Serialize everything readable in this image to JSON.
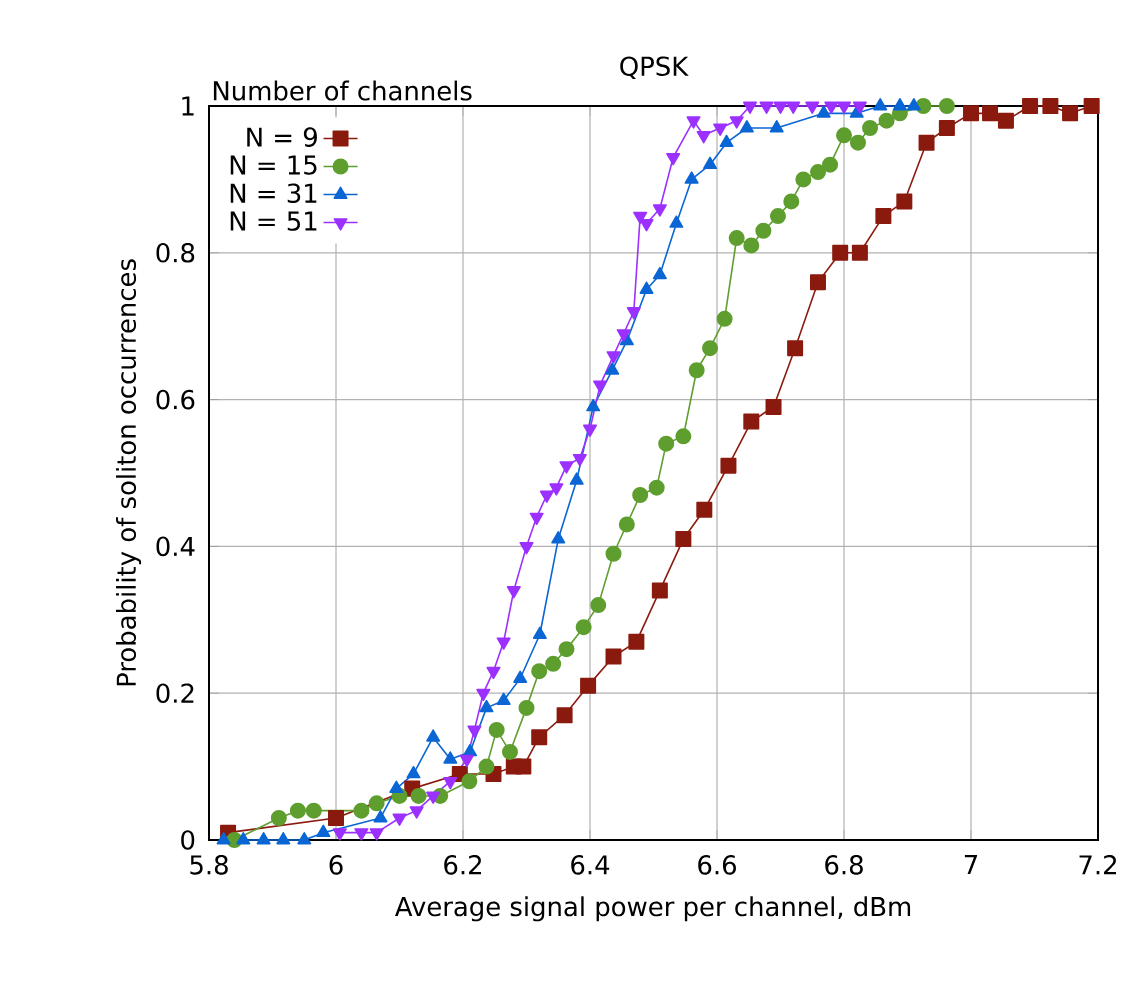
{
  "chart_data": {
    "type": "line",
    "title": "QPSK",
    "xlabel": "Average signal power per channel, dBm",
    "ylabel": "Probability of soliton occurrences",
    "legend_title": "Number of channels",
    "legend": "top left",
    "grid": true,
    "xlim": [
      5.8,
      7.2
    ],
    "xticks": [
      5.8,
      6,
      6.2,
      6.4,
      6.6,
      6.8,
      7,
      7.2
    ],
    "ylim": [
      0,
      1
    ],
    "yticks": [
      0,
      0.2,
      0.4,
      0.6,
      0.8,
      1
    ],
    "series": [
      {
        "name": "N = 9",
        "color": "#8b1a0e",
        "marker": "square",
        "x": [
          5.83,
          6.0,
          6.09,
          6.12,
          6.195,
          6.248,
          6.28,
          6.295,
          6.32,
          6.36,
          6.397,
          6.437,
          6.473,
          6.51,
          6.547,
          6.58,
          6.618,
          6.654,
          6.689,
          6.723,
          6.759,
          6.794,
          6.825,
          6.862,
          6.895,
          6.93,
          6.962,
          7.0,
          7.03,
          7.055,
          7.093,
          7.125,
          7.156,
          7.19
        ],
        "values": [
          0.01,
          0.03,
          null,
          0.07,
          0.09,
          0.09,
          0.1,
          0.1,
          0.14,
          0.17,
          0.21,
          0.25,
          0.27,
          0.34,
          0.41,
          0.45,
          0.51,
          0.57,
          0.59,
          0.67,
          0.76,
          0.8,
          0.8,
          0.85,
          0.87,
          0.95,
          0.97,
          0.99,
          0.99,
          0.98,
          1.0,
          1.0,
          0.99,
          1.0
        ]
      },
      {
        "name": "N = 15",
        "color": "#5e9e2e",
        "marker": "circle",
        "x": [
          5.84,
          5.91,
          5.94,
          5.965,
          6.04,
          6.064,
          6.1,
          6.13,
          6.164,
          6.21,
          6.237,
          6.253,
          6.274,
          6.3,
          6.32,
          6.342,
          6.363,
          6.39,
          6.413,
          6.437,
          6.458,
          6.479,
          6.505,
          6.52,
          6.547,
          6.568,
          6.589,
          6.612,
          6.631,
          6.654,
          6.673,
          6.696,
          6.717,
          6.736,
          6.759,
          6.778,
          6.8,
          6.822,
          6.841,
          6.867,
          6.888,
          6.925,
          6.962
        ],
        "values": [
          0.0,
          0.03,
          0.04,
          0.04,
          0.04,
          0.05,
          0.06,
          0.06,
          0.06,
          0.08,
          0.1,
          0.15,
          0.12,
          0.18,
          0.23,
          0.24,
          0.26,
          0.29,
          0.32,
          0.39,
          0.43,
          0.47,
          0.48,
          0.54,
          0.55,
          0.64,
          0.67,
          0.71,
          0.82,
          0.81,
          0.83,
          0.85,
          0.87,
          0.9,
          0.91,
          0.92,
          0.96,
          0.95,
          0.97,
          0.98,
          0.99,
          1.0,
          1.0
        ]
      },
      {
        "name": "N = 31",
        "color": "#0a66d4",
        "marker": "triangle",
        "x": [
          5.823,
          5.854,
          5.886,
          5.917,
          5.95,
          5.98,
          6.07,
          6.095,
          6.122,
          6.153,
          6.18,
          6.211,
          6.237,
          6.264,
          6.29,
          6.321,
          6.35,
          6.379,
          6.405,
          6.435,
          6.458,
          6.489,
          6.51,
          6.536,
          6.56,
          6.589,
          6.615,
          6.647,
          6.694,
          6.768,
          6.82,
          6.857,
          6.888,
          6.91
        ],
        "values": [
          0.0,
          0.0,
          0.0,
          0.0,
          0.0,
          0.01,
          0.03,
          0.07,
          0.09,
          0.14,
          0.11,
          0.12,
          0.18,
          0.19,
          0.22,
          0.28,
          0.41,
          0.49,
          0.59,
          0.64,
          0.68,
          0.75,
          0.77,
          0.84,
          0.9,
          0.92,
          0.95,
          0.97,
          0.97,
          0.99,
          0.99,
          1.0,
          1.0,
          1.0
        ]
      },
      {
        "name": "N = 51",
        "color": "#9b30ff",
        "marker": "triangle-down",
        "x": [
          6.006,
          6.04,
          6.064,
          6.1,
          6.127,
          6.153,
          6.18,
          6.206,
          6.218,
          6.232,
          6.248,
          6.264,
          6.28,
          6.3,
          6.316,
          6.332,
          6.347,
          6.363,
          6.384,
          6.4,
          6.416,
          6.437,
          6.453,
          6.469,
          6.479,
          6.489,
          6.51,
          6.531,
          6.563,
          6.579,
          6.605,
          6.631,
          6.652,
          6.678,
          6.7,
          6.72,
          6.75,
          6.78,
          6.8,
          6.825
        ],
        "values": [
          0.01,
          0.01,
          0.01,
          0.03,
          0.04,
          0.06,
          0.08,
          0.11,
          0.15,
          0.2,
          0.23,
          0.27,
          0.34,
          0.4,
          0.44,
          0.47,
          0.48,
          0.51,
          0.52,
          0.56,
          0.62,
          0.66,
          0.69,
          0.72,
          0.85,
          0.84,
          0.86,
          0.93,
          0.98,
          0.96,
          0.97,
          0.98,
          1.0,
          1.0,
          1.0,
          1.0,
          1.0,
          1.0,
          1.0,
          1.0
        ]
      }
    ]
  }
}
